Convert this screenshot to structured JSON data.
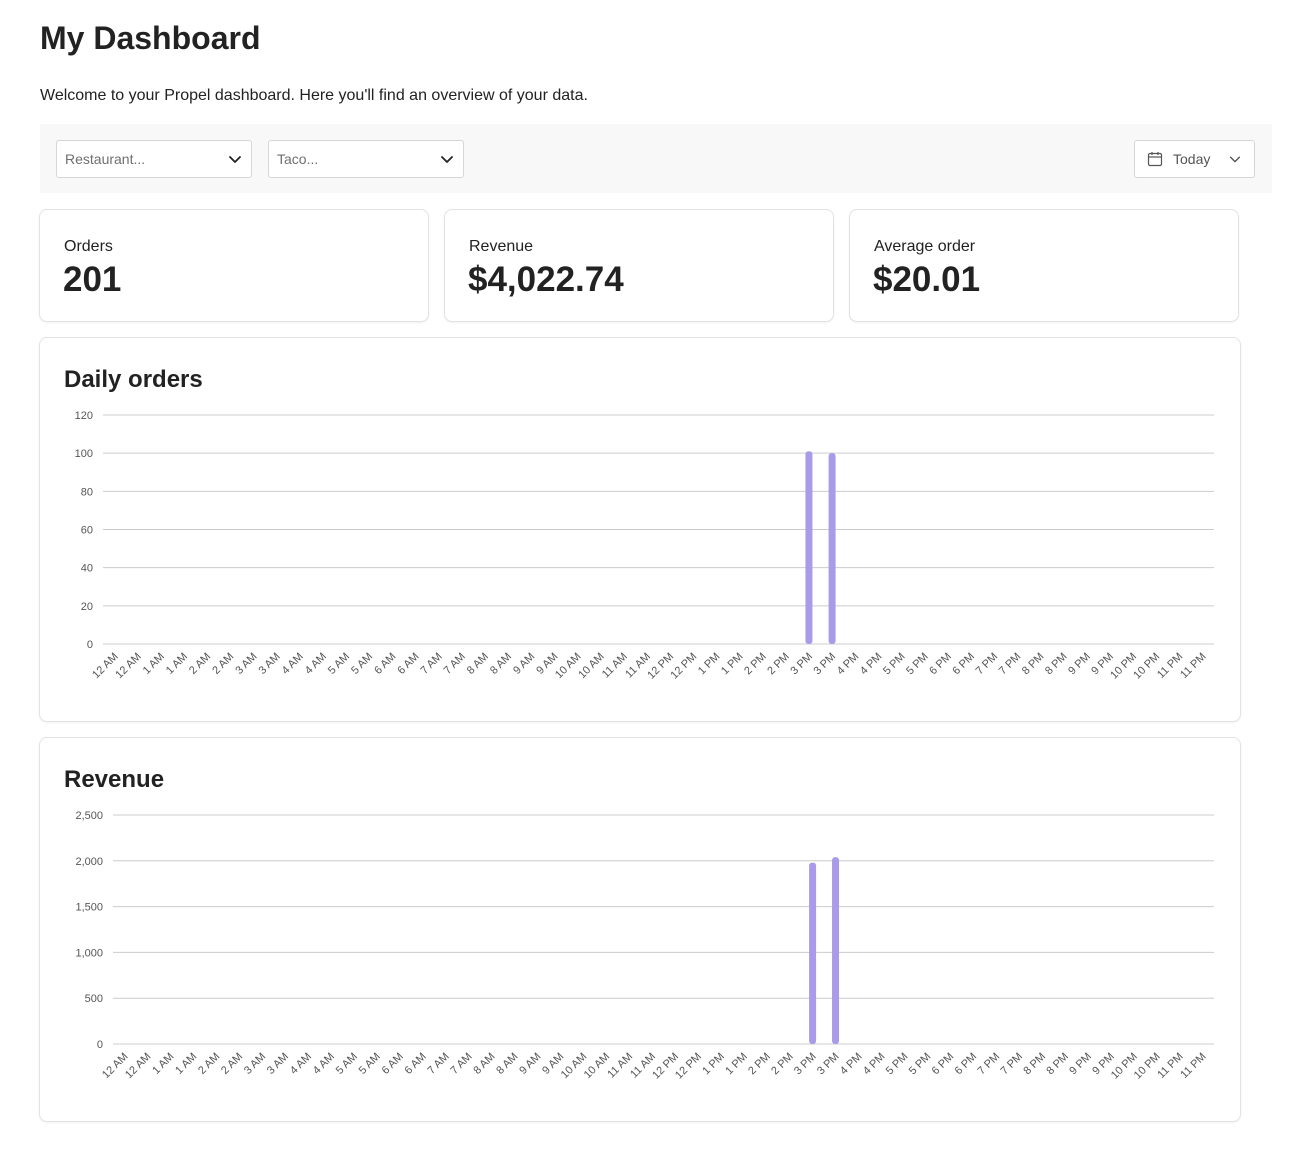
{
  "page": {
    "title": "My Dashboard",
    "intro": "Welcome to your Propel dashboard. Here you'll find an overview of your data."
  },
  "filters": {
    "restaurant_placeholder": "Restaurant...",
    "taco_placeholder": "Taco...",
    "date_range": "Today"
  },
  "kpis": {
    "orders": {
      "label": "Orders",
      "value": "201"
    },
    "revenue": {
      "label": "Revenue",
      "value": "$4,022.74"
    },
    "average_order": {
      "label": "Average order",
      "value": "$20.01"
    }
  },
  "colors": {
    "bar": "#aa9be8",
    "grid": "#cccccc",
    "filter_bg": "#f8f8f8"
  },
  "icons": {
    "select_chevron": "chevron-down-icon",
    "date": "calendar-icon"
  },
  "chart_data": [
    {
      "type": "bar",
      "title": "Daily orders",
      "ylim": [
        0,
        120
      ],
      "yticks": [
        "0",
        "20",
        "40",
        "60",
        "80",
        "100",
        "120"
      ],
      "grid": true,
      "categories": [
        "12 AM",
        "12 AM",
        "1 AM",
        "1 AM",
        "2 AM",
        "2 AM",
        "3 AM",
        "3 AM",
        "4 AM",
        "4 AM",
        "5 AM",
        "5 AM",
        "6 AM",
        "6 AM",
        "7 AM",
        "7 AM",
        "8 AM",
        "8 AM",
        "9 AM",
        "9 AM",
        "10 AM",
        "10 AM",
        "11 AM",
        "11 AM",
        "12 PM",
        "12 PM",
        "1 PM",
        "1 PM",
        "2 PM",
        "2 PM",
        "3 PM",
        "3 PM",
        "4 PM",
        "4 PM",
        "5 PM",
        "5 PM",
        "6 PM",
        "6 PM",
        "7 PM",
        "7 PM",
        "8 PM",
        "8 PM",
        "9 PM",
        "9 PM",
        "10 PM",
        "10 PM",
        "11 PM",
        "11 PM"
      ],
      "values": [
        0,
        0,
        0,
        0,
        0,
        0,
        0,
        0,
        0,
        0,
        0,
        0,
        0,
        0,
        0,
        0,
        0,
        0,
        0,
        0,
        0,
        0,
        0,
        0,
        0,
        0,
        0,
        0,
        0,
        0,
        101,
        100,
        0,
        0,
        0,
        0,
        0,
        0,
        0,
        0,
        0,
        0,
        0,
        0,
        0,
        0,
        0,
        0
      ]
    },
    {
      "type": "bar",
      "title": "Revenue",
      "ylim": [
        0,
        2500
      ],
      "yticks": [
        "0",
        "500",
        "1,000",
        "1,500",
        "2,000",
        "2,500"
      ],
      "grid": true,
      "categories": [
        "12 AM",
        "12 AM",
        "1 AM",
        "1 AM",
        "2 AM",
        "2 AM",
        "3 AM",
        "3 AM",
        "4 AM",
        "4 AM",
        "5 AM",
        "5 AM",
        "6 AM",
        "6 AM",
        "7 AM",
        "7 AM",
        "8 AM",
        "8 AM",
        "9 AM",
        "9 AM",
        "10 AM",
        "10 AM",
        "11 AM",
        "11 AM",
        "12 PM",
        "12 PM",
        "1 PM",
        "1 PM",
        "2 PM",
        "2 PM",
        "3 PM",
        "3 PM",
        "4 PM",
        "4 PM",
        "5 PM",
        "5 PM",
        "6 PM",
        "6 PM",
        "7 PM",
        "7 PM",
        "8 PM",
        "8 PM",
        "9 PM",
        "9 PM",
        "10 PM",
        "10 PM",
        "11 PM",
        "11 PM"
      ],
      "values": [
        0,
        0,
        0,
        0,
        0,
        0,
        0,
        0,
        0,
        0,
        0,
        0,
        0,
        0,
        0,
        0,
        0,
        0,
        0,
        0,
        0,
        0,
        0,
        0,
        0,
        0,
        0,
        0,
        0,
        0,
        1980,
        2040,
        0,
        0,
        0,
        0,
        0,
        0,
        0,
        0,
        0,
        0,
        0,
        0,
        0,
        0,
        0,
        0
      ]
    }
  ]
}
